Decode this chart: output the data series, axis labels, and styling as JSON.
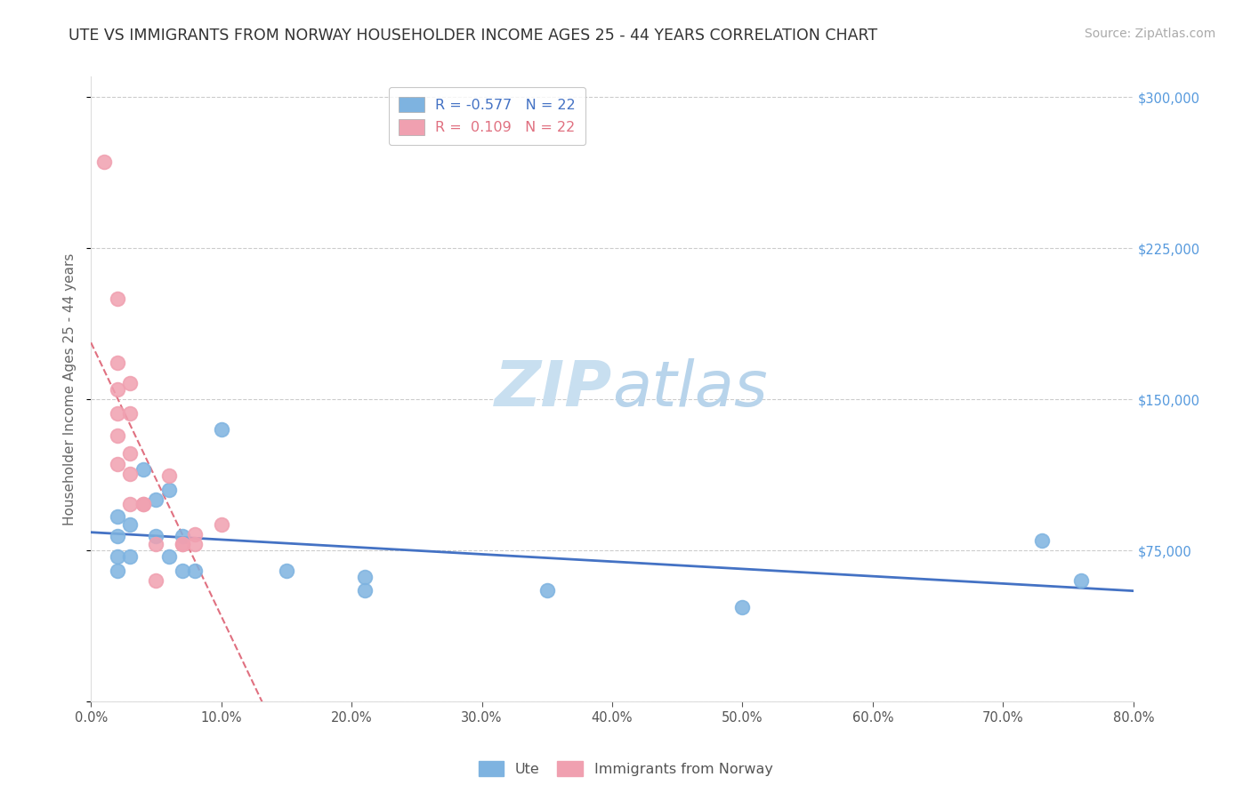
{
  "title": "UTE VS IMMIGRANTS FROM NORWAY HOUSEHOLDER INCOME AGES 25 - 44 YEARS CORRELATION CHART",
  "source": "Source: ZipAtlas.com",
  "ylabel": "Householder Income Ages 25 - 44 years",
  "legend_labels": [
    "Ute",
    "Immigrants from Norway"
  ],
  "R_ute": -0.577,
  "N_ute": 22,
  "R_norway": 0.109,
  "N_norway": 22,
  "xlim": [
    0.0,
    0.8
  ],
  "ylim": [
    0,
    310000
  ],
  "yticks": [
    0,
    75000,
    150000,
    225000,
    300000
  ],
  "ytick_labels_right": [
    "$300,000",
    "$225,000",
    "$150,000",
    "$75,000",
    ""
  ],
  "xtick_labels": [
    "0.0%",
    "10.0%",
    "20.0%",
    "30.0%",
    "40.0%",
    "50.0%",
    "60.0%",
    "70.0%",
    "80.0%"
  ],
  "xticks": [
    0.0,
    0.1,
    0.2,
    0.3,
    0.4,
    0.5,
    0.6,
    0.7,
    0.8
  ],
  "grid_color": "#cccccc",
  "ute_color": "#7eb3e0",
  "norway_color": "#f0a0b0",
  "ute_line_color": "#4472c4",
  "norway_line_color": "#e07080",
  "ute_x": [
    0.02,
    0.02,
    0.02,
    0.02,
    0.03,
    0.03,
    0.04,
    0.05,
    0.05,
    0.06,
    0.06,
    0.07,
    0.07,
    0.08,
    0.1,
    0.15,
    0.21,
    0.21,
    0.35,
    0.5,
    0.73,
    0.76
  ],
  "ute_y": [
    92000,
    82000,
    72000,
    65000,
    88000,
    72000,
    115000,
    100000,
    82000,
    105000,
    72000,
    82000,
    65000,
    65000,
    135000,
    65000,
    62000,
    55000,
    55000,
    47000,
    80000,
    60000
  ],
  "norway_x": [
    0.01,
    0.02,
    0.02,
    0.02,
    0.02,
    0.02,
    0.02,
    0.03,
    0.03,
    0.03,
    0.03,
    0.03,
    0.04,
    0.04,
    0.05,
    0.05,
    0.06,
    0.07,
    0.07,
    0.08,
    0.08,
    0.1
  ],
  "norway_y": [
    268000,
    200000,
    168000,
    155000,
    143000,
    132000,
    118000,
    158000,
    143000,
    123000,
    113000,
    98000,
    98000,
    98000,
    78000,
    60000,
    112000,
    78000,
    78000,
    78000,
    83000,
    88000
  ],
  "title_fontsize": 12.5,
  "axis_label_fontsize": 11,
  "tick_fontsize": 10.5,
  "legend_fontsize": 11.5,
  "source_fontsize": 10,
  "watermark_fontsize": 52,
  "watermark_color": "#ddeef8",
  "background_color": "#ffffff",
  "right_ytick_color": "#5599dd"
}
